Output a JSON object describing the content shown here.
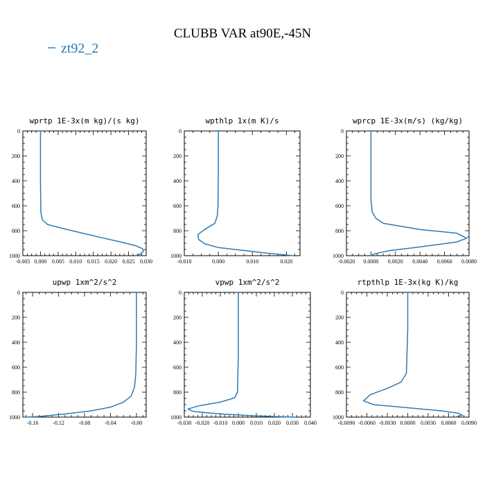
{
  "figure": {
    "title": "CLUBB VAR at90E,-45N",
    "legend": {
      "label": "zt92_2",
      "color": "#2a7ab5"
    }
  },
  "chart_data": [
    {
      "type": "line",
      "title": "wprtp  1E-3x(m kg)/(s kg)",
      "xlim": [
        -0.005,
        0.03
      ],
      "ylim": [
        1000,
        0
      ],
      "xticks": [
        "-0.005",
        "0.000",
        "0.005",
        "0.010",
        "0.015",
        "0.020",
        "0.025",
        "0.030"
      ],
      "xtick_values": [
        -0.005,
        0.0,
        0.005,
        0.01,
        0.015,
        0.02,
        0.025,
        0.03
      ],
      "yticks": [
        "0",
        "200",
        "400",
        "600",
        "800",
        "1000"
      ],
      "ytick_values": [
        0,
        200,
        400,
        600,
        800,
        1000
      ],
      "series": [
        {
          "name": "zt92_2",
          "x": [
            0.0,
            0.0,
            0.0,
            0.0001,
            0.0005,
            0.002,
            0.006,
            0.012,
            0.018,
            0.0235,
            0.027,
            0.029,
            0.0293,
            0.0285,
            0.027
          ],
          "y": [
            0,
            200,
            400,
            650,
            710,
            750,
            780,
            820,
            860,
            895,
            920,
            945,
            960,
            985,
            1000
          ]
        }
      ]
    },
    {
      "type": "line",
      "title": "wpthlp  1x(m K)/s",
      "xlim": [
        -0.01,
        0.024
      ],
      "ylim": [
        1000,
        0
      ],
      "xticks": [
        "-0.010",
        "0.000",
        "0.010",
        "0.020"
      ],
      "xtick_values": [
        -0.01,
        0.0,
        0.01,
        0.02
      ],
      "yticks": [
        "0",
        "200",
        "400",
        "600",
        "800",
        "1000"
      ],
      "ytick_values": [
        0,
        200,
        400,
        600,
        800,
        1000
      ],
      "series": [
        {
          "name": "zt92_2",
          "x": [
            0.0,
            0.0,
            -0.0001,
            -0.0003,
            -0.001,
            -0.004,
            -0.006,
            -0.0058,
            -0.004,
            0.0,
            0.008,
            0.016,
            0.022
          ],
          "y": [
            0,
            300,
            600,
            680,
            740,
            790,
            830,
            870,
            905,
            935,
            960,
            985,
            1000
          ]
        }
      ]
    },
    {
      "type": "line",
      "title": "wprcp  1E-3x(m/s) (kg/kg)",
      "xlim": [
        -0.002,
        0.008
      ],
      "ylim": [
        1000,
        0
      ],
      "xticks": [
        "-0.0020",
        "0.0000",
        "0.0020",
        "0.0040",
        "0.0060",
        "0.0080"
      ],
      "xtick_values": [
        -0.002,
        0.0,
        0.002,
        0.004,
        0.006,
        0.008
      ],
      "yticks": [
        "0",
        "200",
        "400",
        "600",
        "800",
        "1000"
      ],
      "ytick_values": [
        0,
        200,
        400,
        600,
        800,
        1000
      ],
      "series": [
        {
          "name": "zt92_2",
          "x": [
            0.0,
            0.0,
            0.0,
            0.0001,
            0.0004,
            0.001,
            0.004,
            0.007,
            0.0078,
            0.007,
            0.004,
            0.0015,
            0.0003,
            0.0
          ],
          "y": [
            0,
            300,
            550,
            650,
            700,
            740,
            790,
            820,
            860,
            890,
            930,
            960,
            985,
            1000
          ]
        }
      ]
    },
    {
      "type": "line",
      "title": "upwp  1xm^2/s^2",
      "xlim": [
        -0.175,
        0.015
      ],
      "ylim": [
        1000,
        0
      ],
      "xticks": [
        "-0.16",
        "-0.12",
        "-0.08",
        "-0.04",
        "-0.00"
      ],
      "xtick_values": [
        -0.16,
        -0.12,
        -0.08,
        -0.04,
        0.0
      ],
      "yticks": [
        "0",
        "200",
        "400",
        "600",
        "800",
        "1000"
      ],
      "ytick_values": [
        0,
        200,
        400,
        600,
        800,
        1000
      ],
      "series": [
        {
          "name": "zt92_2",
          "x": [
            0.0,
            0.0,
            -0.001,
            -0.003,
            -0.008,
            -0.02,
            -0.04,
            -0.07,
            -0.11,
            -0.15,
            -0.17
          ],
          "y": [
            0,
            400,
            650,
            760,
            830,
            880,
            920,
            950,
            975,
            995,
            1000
          ]
        }
      ]
    },
    {
      "type": "line",
      "title": "vpwp  1xm^2/s^2",
      "xlim": [
        -0.03,
        0.04
      ],
      "ylim": [
        1000,
        0
      ],
      "xticks": [
        "-0.030",
        "-0.020",
        "-0.010",
        "0.000",
        "0.010",
        "0.020",
        "0.030",
        "0.040"
      ],
      "xtick_values": [
        -0.03,
        -0.02,
        -0.01,
        0.0,
        0.01,
        0.02,
        0.03,
        0.04
      ],
      "yticks": [
        "0",
        "200",
        "400",
        "600",
        "800",
        "1000"
      ],
      "ytick_values": [
        0,
        200,
        400,
        600,
        800,
        1000
      ],
      "series": [
        {
          "name": "zt92_2",
          "x": [
            0.0,
            0.0,
            -0.0005,
            -0.002,
            -0.01,
            -0.022,
            -0.028,
            -0.025,
            -0.01,
            0.01,
            0.025,
            0.032
          ],
          "y": [
            0,
            500,
            800,
            845,
            880,
            910,
            935,
            955,
            975,
            990,
            998,
            1000
          ]
        }
      ]
    },
    {
      "type": "line",
      "title": "rtpthlp  1E-3x(kg K)/kg",
      "xlim": [
        -0.009,
        0.009
      ],
      "ylim": [
        1000,
        0
      ],
      "xticks": [
        "-0.0090",
        "-0.0060",
        "-0.0030",
        "0.0000",
        "0.0030",
        "0.0060",
        "0.0090"
      ],
      "xtick_values": [
        -0.009,
        -0.006,
        -0.003,
        0.0,
        0.003,
        0.006,
        0.009
      ],
      "yticks": [
        "0",
        "200",
        "400",
        "600",
        "800",
        "1000"
      ],
      "ytick_values": [
        0,
        200,
        400,
        600,
        800,
        1000
      ],
      "series": [
        {
          "name": "zt92_2",
          "x": [
            0.0,
            0.0,
            -0.0002,
            -0.001,
            -0.003,
            -0.0055,
            -0.0065,
            -0.005,
            0.0,
            0.005,
            0.0075,
            0.008,
            0.007
          ],
          "y": [
            0,
            300,
            650,
            720,
            770,
            820,
            870,
            900,
            925,
            950,
            970,
            985,
            1000
          ]
        }
      ]
    }
  ]
}
